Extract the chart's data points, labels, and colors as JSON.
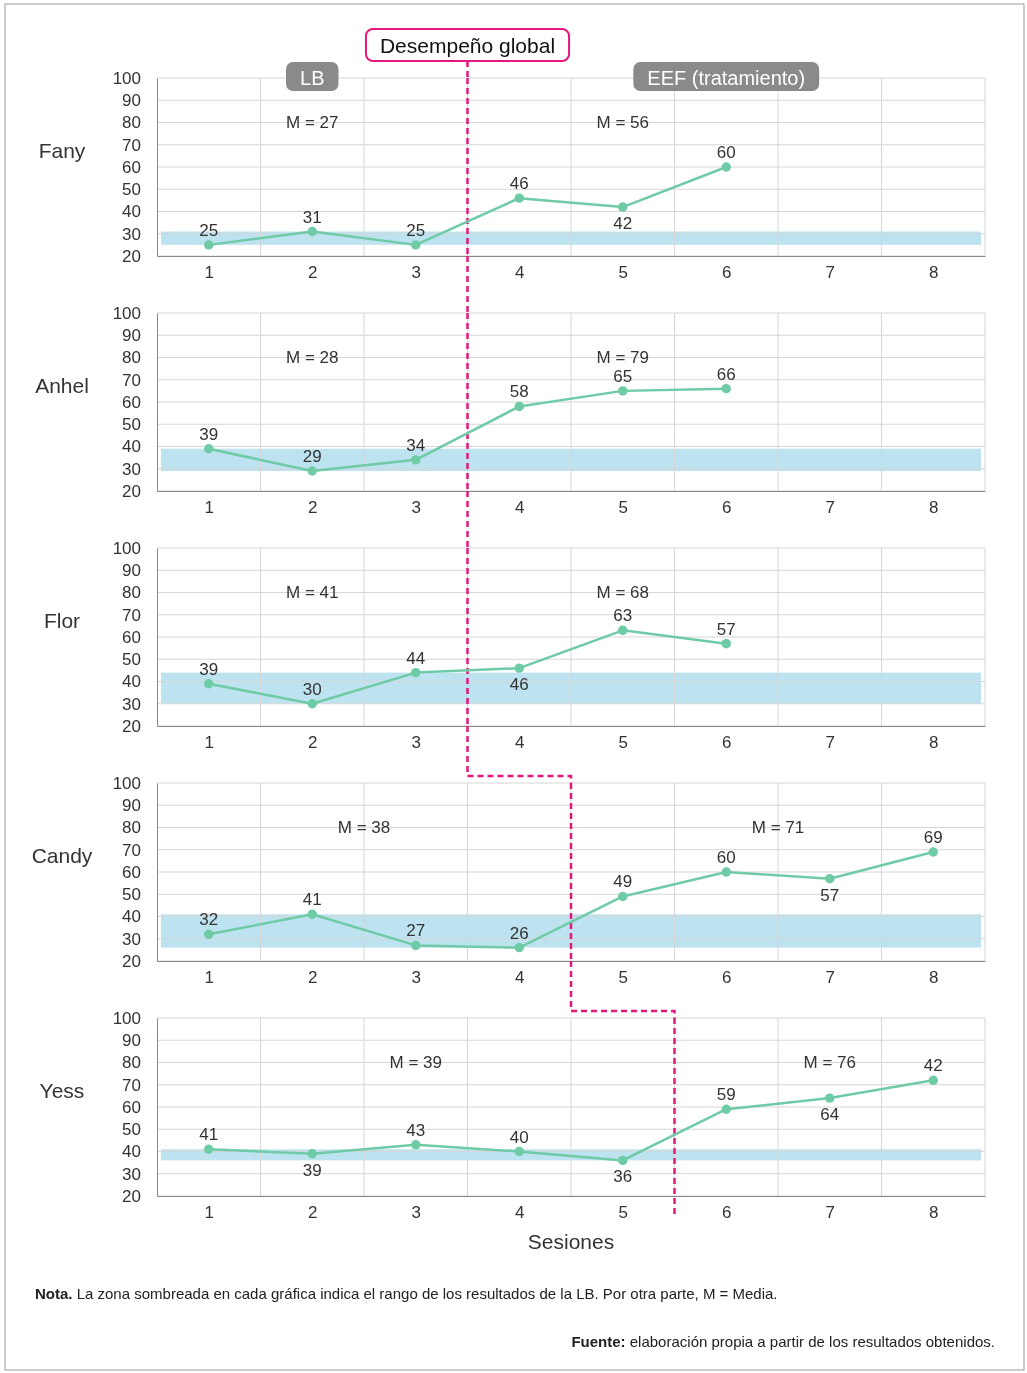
{
  "chart_data": [
    {
      "type": "line",
      "ylabel": "Fany",
      "x": [
        1,
        2,
        3,
        4,
        5,
        6
      ],
      "xlim": [
        0.5,
        8.5
      ],
      "xticks": [
        1,
        2,
        3,
        4,
        5,
        6,
        7,
        8
      ],
      "ylim": [
        20,
        100
      ],
      "yticks": [
        20,
        30,
        40,
        50,
        60,
        70,
        80,
        90,
        100
      ],
      "grid": true,
      "marker": "circle",
      "line_style": "solid",
      "series": [
        {
          "color": "#6fcaa6",
          "values": [
            25,
            31,
            25,
            46,
            42,
            60
          ],
          "value_labels": [
            "25",
            "31",
            "25",
            "46",
            "42",
            "60"
          ]
        }
      ],
      "bands": [
        {
          "axis": "y",
          "from": 25,
          "to": 31,
          "color": "#bde3f1"
        }
      ],
      "ref_lines": [
        {
          "axis": "x",
          "value": 3.5,
          "color": "#e5177b",
          "line_style": "dashed"
        }
      ],
      "annotations": [
        "M = 27",
        "M = 56",
        "LB",
        "EEF (tratamiento)",
        "Desempeño global"
      ]
    },
    {
      "type": "line",
      "ylabel": "Anhel",
      "x": [
        1,
        2,
        3,
        4,
        5,
        6
      ],
      "xlim": [
        0.5,
        8.5
      ],
      "xticks": [
        1,
        2,
        3,
        4,
        5,
        6,
        7,
        8
      ],
      "ylim": [
        20,
        100
      ],
      "yticks": [
        20,
        30,
        40,
        50,
        60,
        70,
        80,
        90,
        100
      ],
      "grid": true,
      "marker": "circle",
      "line_style": "solid",
      "series": [
        {
          "color": "#6fcaa6",
          "values": [
            39,
            29,
            34,
            58,
            65,
            66
          ],
          "value_labels": [
            "39",
            "29",
            "34",
            "58",
            "65",
            "66"
          ]
        }
      ],
      "bands": [
        {
          "axis": "y",
          "from": 29,
          "to": 39,
          "color": "#bde3f1"
        }
      ],
      "ref_lines": [
        {
          "axis": "x",
          "value": 3.5,
          "color": "#e5177b",
          "line_style": "dashed"
        }
      ],
      "annotations": [
        "M = 28",
        "M = 79"
      ]
    },
    {
      "type": "line",
      "ylabel": "Flor",
      "x": [
        1,
        2,
        3,
        4,
        5,
        6
      ],
      "xlim": [
        0.5,
        8.5
      ],
      "xticks": [
        1,
        2,
        3,
        4,
        5,
        6,
        7,
        8
      ],
      "ylim": [
        20,
        100
      ],
      "yticks": [
        20,
        30,
        40,
        50,
        60,
        70,
        80,
        90,
        100
      ],
      "grid": true,
      "marker": "circle",
      "line_style": "solid",
      "series": [
        {
          "color": "#6fcaa6",
          "values": [
            39,
            30,
            44,
            46,
            63,
            57
          ],
          "value_labels": [
            "39",
            "30",
            "44",
            "46",
            "63",
            "57"
          ]
        }
      ],
      "bands": [
        {
          "axis": "y",
          "from": 30,
          "to": 44,
          "color": "#bde3f1"
        }
      ],
      "ref_lines": [
        {
          "axis": "x",
          "value": 3.5,
          "color": "#e5177b",
          "line_style": "dashed"
        }
      ],
      "annotations": [
        "M = 41",
        "M = 68"
      ]
    },
    {
      "type": "line",
      "ylabel": "Candy",
      "x": [
        1,
        2,
        3,
        4,
        5,
        6,
        7,
        8
      ],
      "xlim": [
        0.5,
        8.5
      ],
      "xticks": [
        1,
        2,
        3,
        4,
        5,
        6,
        7,
        8
      ],
      "ylim": [
        20,
        100
      ],
      "yticks": [
        20,
        30,
        40,
        50,
        60,
        70,
        80,
        90,
        100
      ],
      "grid": true,
      "marker": "circle",
      "line_style": "solid",
      "series": [
        {
          "color": "#6fcaa6",
          "values": [
            32,
            41,
            27,
            26,
            49,
            60,
            57,
            69
          ],
          "value_labels": [
            "32",
            "41",
            "27",
            "26",
            "49",
            "60",
            "57",
            "69"
          ]
        }
      ],
      "bands": [
        {
          "axis": "y",
          "from": 26,
          "to": 41,
          "color": "#bde3f1"
        }
      ],
      "ref_lines": [
        {
          "axis": "x",
          "value": 4.5,
          "color": "#e5177b",
          "line_style": "dashed"
        }
      ],
      "annotations": [
        "M = 38",
        "M = 71"
      ]
    },
    {
      "type": "line",
      "ylabel": "Yess",
      "xlabel": "Sesiones",
      "x": [
        1,
        2,
        3,
        4,
        5,
        6,
        7,
        8
      ],
      "xlim": [
        0.5,
        8.5
      ],
      "xticks": [
        1,
        2,
        3,
        4,
        5,
        6,
        7,
        8
      ],
      "ylim": [
        20,
        100
      ],
      "yticks": [
        20,
        30,
        40,
        50,
        60,
        70,
        80,
        90,
        100
      ],
      "grid": true,
      "marker": "circle",
      "line_style": "solid",
      "series": [
        {
          "color": "#6fcaa6",
          "values": [
            41,
            39,
            43,
            40,
            36,
            59,
            64,
            72
          ],
          "value_labels": [
            "41",
            "39",
            "43",
            "40",
            "36",
            "59",
            "64",
            null
          ]
        }
      ],
      "bands": [
        {
          "axis": "y",
          "from": 36,
          "to": 41,
          "color": "#bde3f1"
        }
      ],
      "ref_lines": [
        {
          "axis": "x",
          "value": 5.5,
          "color": "#e5177b",
          "line_style": "dashed"
        }
      ],
      "annotations": [
        "M = 39",
        "M = 76",
        "Nota. La zona sombreada en cada gráfica indica el rango de los resultados de la LB. Por otra parte, M = Media.",
        "Fuente: elaboración propia a partir de los resultados obtenidos.",
        {
          "text": "42",
          "x": 8,
          "y": 72
        }
      ]
    }
  ]
}
